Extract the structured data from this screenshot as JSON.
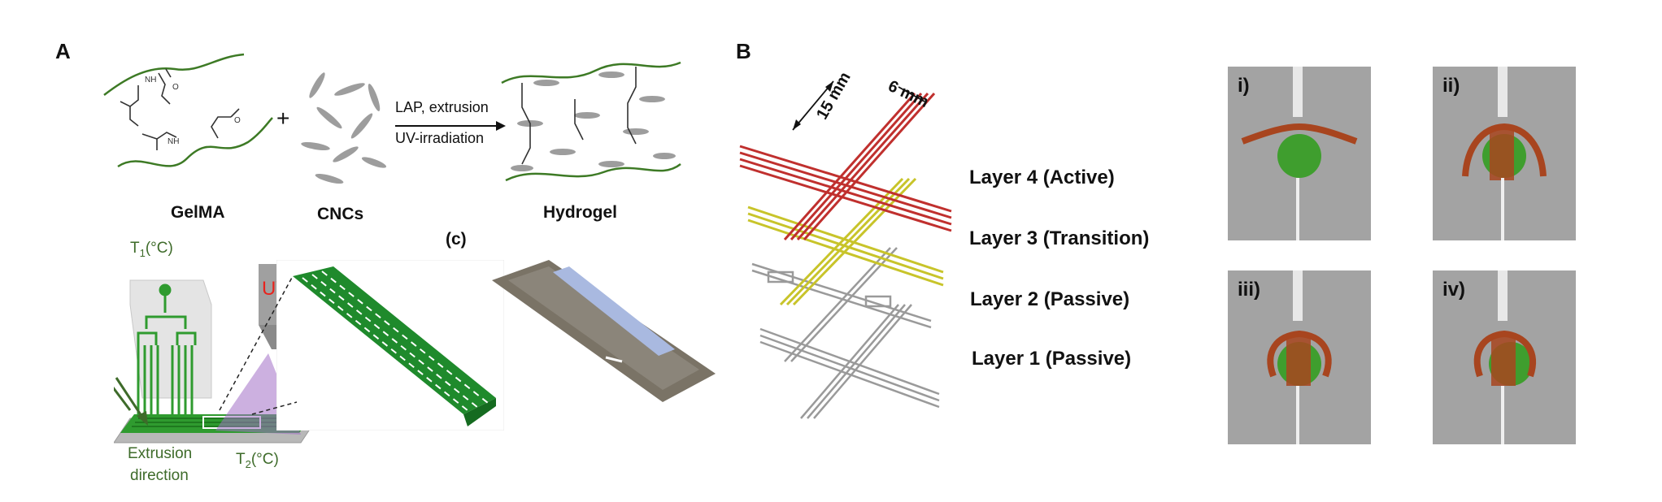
{
  "panel_a": {
    "letter": "A",
    "gelma_label": "GelMA",
    "plus": "+",
    "cnc_label": "CNCs",
    "reaction_line1": "LAP, extrusion",
    "reaction_line2": "UV-irradiation",
    "hydrogel_label": "Hydrogel",
    "t1_main": "T",
    "t1_sub": "1",
    "t1_unit": "(°C)",
    "t2_main": "T",
    "t2_sub": "2",
    "t2_unit": "(°C)",
    "uv_label": "UV",
    "subpanel_c": "(c)",
    "extrusion_line1": "Extrusion",
    "extrusion_line2": "direction"
  },
  "panel_b": {
    "letter": "B",
    "dim_15": "15 mm",
    "dim_6": "6 mm",
    "layers": [
      {
        "label": "Layer 4 (Active)",
        "color": "#c0302e"
      },
      {
        "label": "Layer 3 (Transition)",
        "color": "#c8c42a"
      },
      {
        "label": "Layer 2 (Passive)",
        "color": "#9a9a9a"
      },
      {
        "label": "Layer 1 (Passive)",
        "color": "#9a9a9a"
      }
    ]
  },
  "photos": [
    {
      "label": "i)"
    },
    {
      "label": "ii)"
    },
    {
      "label": "iii)"
    },
    {
      "label": "iv)"
    }
  ]
}
